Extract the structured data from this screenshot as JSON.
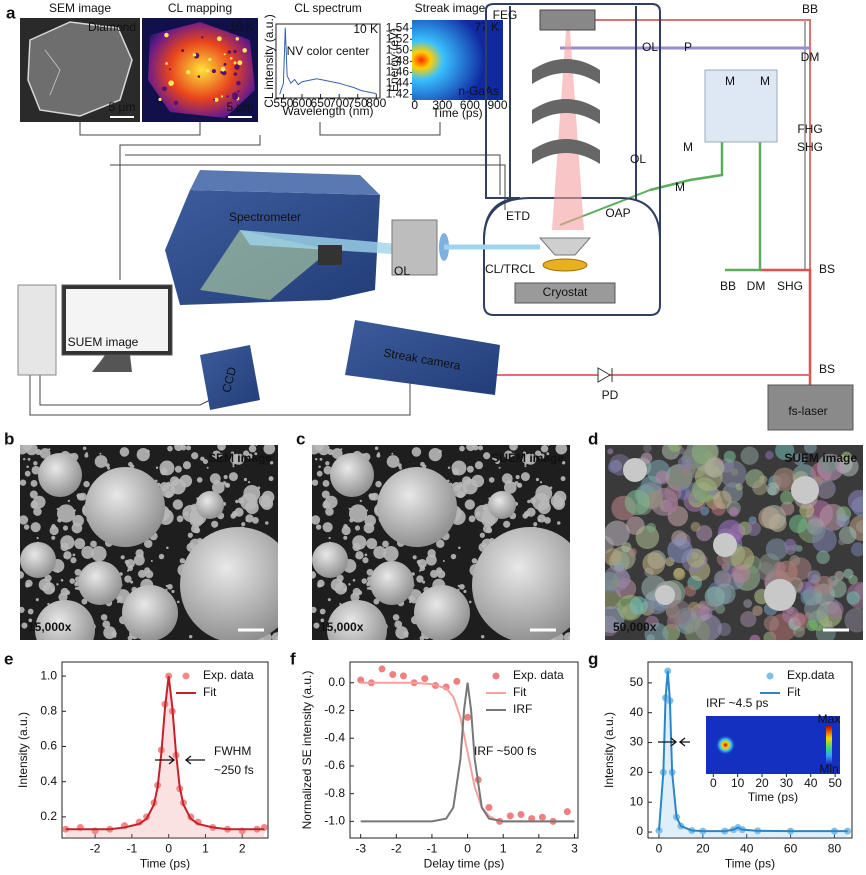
{
  "panel_labels": [
    "a",
    "b",
    "c",
    "d",
    "e",
    "f",
    "g"
  ],
  "panel_a": {
    "sem": {
      "title": "SEM image",
      "tag": "Diamond",
      "scale": "5 µm"
    },
    "cl_map": {
      "title": "CL mapping",
      "tag": "10 K",
      "scale": "5 µm"
    },
    "streak": {
      "title": "Streak image",
      "tag": "77 K",
      "sample": "n-GaAs",
      "ylabel": "Energy (eV)",
      "xlabel": "Time (ps)",
      "ylim": [
        1.41,
        1.555
      ],
      "yticks": [
        1.54,
        1.52,
        {
          "value": 1.5,
          "label": "1.50"
        },
        1.48,
        1.46,
        1.44,
        1.42
      ],
      "xlim": [
        -30,
        960
      ],
      "xticks": [
        0,
        300,
        600,
        900
      ]
    },
    "setup_labels": [
      "Spectrometer",
      "OL",
      "CL/TRCL",
      "Cryostat",
      "ETD",
      "OAP",
      "FEG",
      "OL",
      "P",
      "BB",
      "DM",
      "M",
      "M",
      "M",
      "M",
      "OL",
      "FHG",
      "SHG",
      "BB",
      "DM",
      "SHG",
      "BS",
      "BS",
      "PD",
      "fs-laser",
      "Streak camera",
      "CCD",
      "SUEM image"
    ]
  },
  "micrographs": [
    {
      "label": "SEM image",
      "mag": "15,000x"
    },
    {
      "label": "SUEM image",
      "mag": "15,000x"
    },
    {
      "label": "SUEM image",
      "mag": "50,000x"
    }
  ],
  "chart_data": [
    {
      "type": "line",
      "title": "CL spectrum",
      "xlabel": "Wavelength (nm)",
      "ylabel": "CL intensity (a.u.)",
      "annotations": [
        "10 K",
        "NV color center"
      ],
      "x": [
        540,
        550,
        555,
        560,
        570,
        580,
        590,
        600,
        620,
        640,
        660,
        680,
        700,
        720,
        740,
        760,
        780,
        800
      ],
      "xlim": [
        530,
        810
      ],
      "xticks": [
        550,
        600,
        650,
        700,
        750,
        800
      ],
      "ylim": [
        0,
        1
      ],
      "series": [
        {
          "name": "CL",
          "color": "#3a5fb0",
          "mode": "line",
          "values": [
            0.05,
            0.2,
            0.95,
            0.3,
            0.2,
            0.25,
            0.18,
            0.22,
            0.24,
            0.26,
            0.24,
            0.22,
            0.2,
            0.17,
            0.14,
            0.1,
            0.08,
            0.06
          ]
        }
      ]
    },
    {
      "type": "line",
      "xlabel": "Time (ps)",
      "ylabel": "Intensity (a.u.)",
      "annotations": [
        "FWHM",
        "~250 fs"
      ],
      "legend": "upper right",
      "x": [
        -2.8,
        -2.4,
        -2.0,
        -1.6,
        -1.2,
        -0.8,
        -0.6,
        -0.4,
        -0.3,
        -0.2,
        -0.1,
        0,
        0.1,
        0.2,
        0.3,
        0.4,
        0.6,
        0.8,
        1.2,
        1.6,
        2.0,
        2.4,
        2.6
      ],
      "xlim": [
        -2.9,
        2.7
      ],
      "xticks": [
        -2,
        -1,
        0,
        1,
        2
      ],
      "ylim": [
        0.08,
        1.08
      ],
      "yticks": [
        0.2,
        0.4,
        0.6,
        0.8,
        {
          "value": 1,
          "label": "1.0"
        }
      ],
      "series": [
        {
          "name": "Exp. data",
          "color": "#f08a8a",
          "mode": "markers",
          "fill": true,
          "values": [
            0.13,
            0.14,
            0.12,
            0.13,
            0.15,
            0.17,
            0.2,
            0.28,
            0.38,
            0.58,
            0.84,
            1.0,
            0.8,
            0.55,
            0.36,
            0.28,
            0.2,
            0.17,
            0.14,
            0.13,
            0.12,
            0.13,
            0.14
          ]
        },
        {
          "name": "Fit",
          "color": "#c8202a",
          "mode": "line",
          "values": [
            0.13,
            0.13,
            0.13,
            0.13,
            0.14,
            0.16,
            0.19,
            0.27,
            0.37,
            0.56,
            0.82,
            1.0,
            0.82,
            0.56,
            0.37,
            0.27,
            0.19,
            0.16,
            0.14,
            0.13,
            0.13,
            0.13,
            0.13
          ]
        }
      ]
    },
    {
      "type": "line",
      "xlabel": "Delay time (ps)",
      "ylabel": "Normalized SE intensity (a.u.)",
      "annotations": [
        "IRF ~500 fs"
      ],
      "legend": "upper right",
      "x": [
        -3,
        -2.7,
        -2.4,
        -2.1,
        -1.8,
        -1.5,
        -1.2,
        -0.9,
        -0.6,
        -0.3,
        0,
        0.3,
        0.6,
        0.9,
        1.2,
        1.5,
        1.8,
        2.1,
        2.4,
        2.8
      ],
      "xlim": [
        -3.3,
        3.1
      ],
      "xticks": [
        -3,
        -2,
        -1,
        0,
        1,
        2,
        3
      ],
      "ylim": [
        -1.12,
        0.15
      ],
      "yticks": [
        {
          "value": 0,
          "label": "0.0"
        },
        -0.2,
        -0.4,
        -0.6,
        -0.8,
        {
          "value": -1,
          "label": "-1.0"
        }
      ],
      "series": [
        {
          "name": "Exp. data",
          "color": "#f08080",
          "mode": "markers",
          "values": [
            0.02,
            0.0,
            0.1,
            0.06,
            0.05,
            0.0,
            0.03,
            -0.02,
            -0.03,
            0.01,
            -0.25,
            -0.7,
            -0.9,
            -1.0,
            -0.96,
            -0.95,
            -0.98,
            -0.97,
            -1.0,
            -0.93
          ]
        },
        {
          "name": "Fit",
          "color": "#f4a0a0",
          "mode": "line",
          "x": [
            -3,
            -1.5,
            -1,
            -0.6,
            -0.4,
            -0.2,
            0,
            0.2,
            0.4,
            0.6,
            0.8,
            1,
            1.5,
            3
          ],
          "values": [
            0,
            0,
            -0.01,
            -0.04,
            -0.1,
            -0.25,
            -0.5,
            -0.75,
            -0.9,
            -0.96,
            -0.99,
            -1,
            -1,
            -1
          ]
        },
        {
          "name": "IRF",
          "color": "#777777",
          "mode": "line",
          "x": [
            -3,
            -1,
            -0.6,
            -0.4,
            -0.2,
            -0.1,
            0,
            0.1,
            0.2,
            0.4,
            0.6,
            1,
            3
          ],
          "values": [
            -1,
            -1,
            -0.98,
            -0.9,
            -0.55,
            -0.2,
            0,
            -0.2,
            -0.55,
            -0.9,
            -0.98,
            -1,
            -1
          ]
        }
      ]
    },
    {
      "type": "line",
      "xlabel": "Time (ps)",
      "ylabel": "Intensity (a.u.)",
      "legend": "upper right",
      "x": [
        0,
        2,
        3,
        4,
        5,
        6,
        8,
        10,
        15,
        20,
        30,
        34,
        36,
        38,
        45,
        60,
        80,
        86
      ],
      "xlim": [
        -5,
        88
      ],
      "xticks": [
        0,
        20,
        40,
        60,
        80
      ],
      "ylim": [
        -2,
        57
      ],
      "yticks": [
        0,
        10,
        20,
        30,
        40,
        50
      ],
      "series": [
        {
          "name": "Exp.data",
          "color": "#7fc0ea",
          "mode": "markers",
          "fill": true,
          "values": [
            0.5,
            20,
            45,
            54,
            44,
            20,
            5,
            2,
            0.5,
            0.3,
            0.3,
            0.8,
            1.5,
            0.8,
            0.4,
            0.3,
            0.3,
            0.3
          ]
        },
        {
          "name": "Fit",
          "color": "#2b86c8",
          "mode": "line",
          "values": [
            0.5,
            20,
            45,
            54,
            44,
            20,
            5,
            2,
            0.5,
            0.3,
            0.3,
            0.8,
            1.5,
            0.8,
            0.4,
            0.3,
            0.3,
            0.3
          ]
        }
      ],
      "inset": {
        "title": "IRF ~4.5 ps",
        "xlabel": "Time (ps)",
        "xlim": [
          -3,
          52
        ],
        "xticks": [
          0,
          10,
          20,
          30,
          40,
          50
        ],
        "colorbar": [
          "Max",
          "Min"
        ]
      }
    }
  ]
}
